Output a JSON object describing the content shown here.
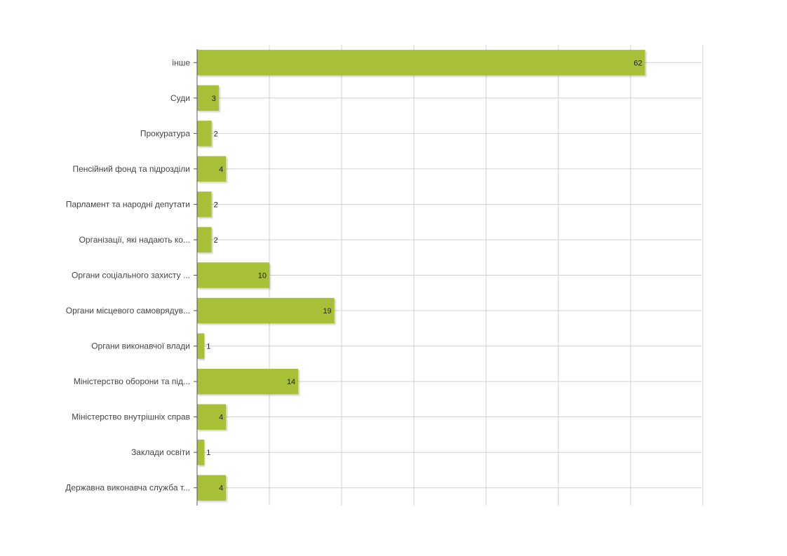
{
  "chart_data": {
    "type": "bar",
    "orientation": "horizontal",
    "categories": [
      "інше",
      "Суди",
      "Прокуратура",
      "Пенсійний фонд та підрозділи",
      "Парламент та народні депутати",
      "Організації, які надають ко...",
      "Органи соціального захисту ...",
      "Органи місцевого самоврядув...",
      "Органи виконавчої влади",
      "Міністерство оборони та під...",
      "Міністерство внутрішніх справ",
      "Заклади освіти",
      "Державна виконавча служба т..."
    ],
    "values": [
      62,
      3,
      2,
      4,
      2,
      2,
      10,
      19,
      1,
      14,
      4,
      1,
      4
    ],
    "xlim": [
      0,
      70
    ],
    "x_grid_step": 10,
    "grid": true,
    "legend": "none",
    "colors": {
      "bar": "#a8bf38",
      "grid": "#d0d0d0",
      "axis": "#555555"
    }
  }
}
